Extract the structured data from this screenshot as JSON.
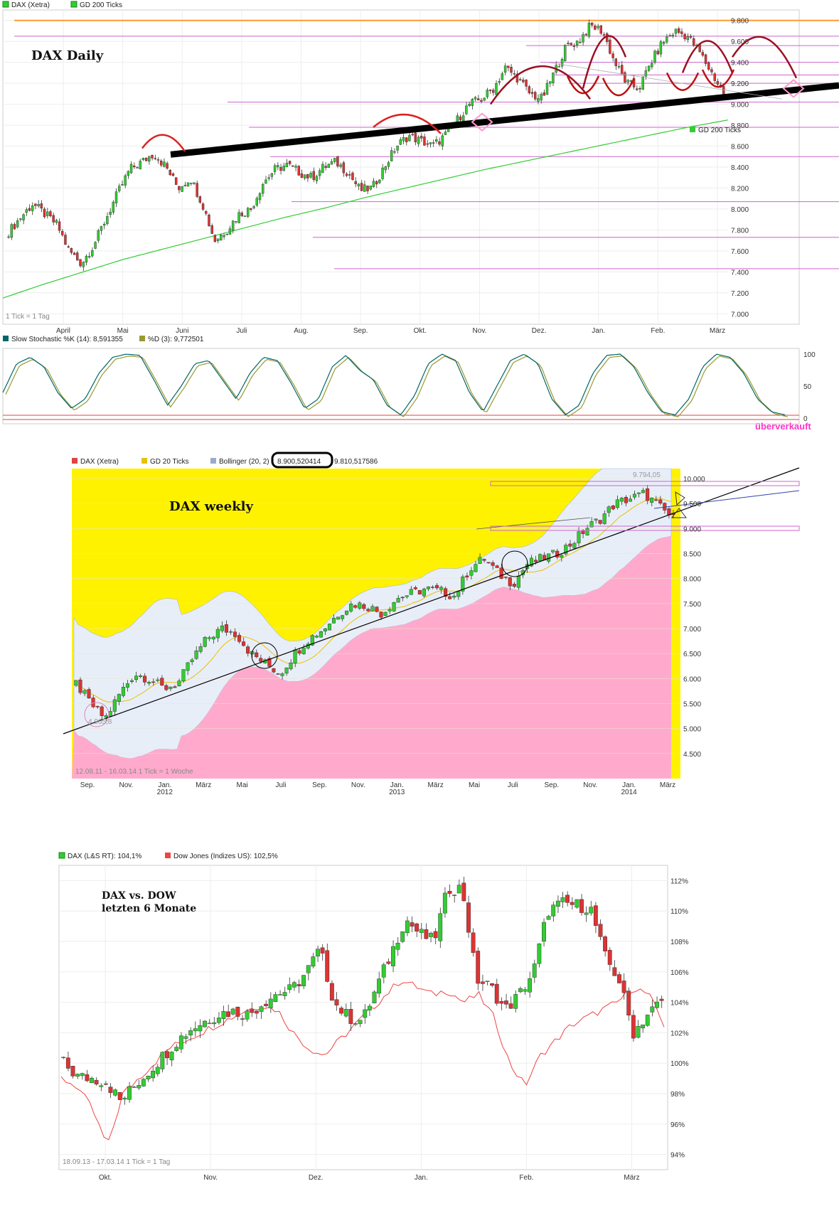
{
  "chart_data": [
    {
      "id": "dax_daily",
      "type": "candlestick",
      "title": "DAX Daily",
      "legend": [
        {
          "label": "DAX (Xetra)",
          "color": "#33cc33"
        },
        {
          "label": "GD 200 Ticks",
          "color": "#33cc33"
        }
      ],
      "footnote": "1 Tick = 1 Tag",
      "ma_label": "GD 200 Ticks",
      "ylim": [
        6900,
        9900
      ],
      "y_ticks": [
        "9.800",
        "9.600",
        "9.400",
        "9.200",
        "9.000",
        "8.800",
        "8.600",
        "8.400",
        "8.200",
        "8.000",
        "7.800",
        "7.600",
        "7.400",
        "7.200",
        "7.000"
      ],
      "x_ticks": [
        "April",
        "Mai",
        "Juni",
        "Juli",
        "Aug.",
        "Sep.",
        "Okt.",
        "Nov.",
        "Dez.",
        "Jan.",
        "Feb.",
        "März"
      ],
      "close_path": [
        7780,
        7920,
        8050,
        7950,
        7850,
        7600,
        7480,
        7650,
        7900,
        8150,
        8380,
        8450,
        8530,
        8400,
        8200,
        8300,
        8050,
        7700,
        7800,
        7950,
        8000,
        8250,
        8380,
        8420,
        8350,
        8300,
        8400,
        8450,
        8350,
        8180,
        8200,
        8400,
        8600,
        8700,
        8650,
        8600,
        8700,
        8850,
        9000,
        9050,
        9150,
        9350,
        9250,
        9100,
        9050,
        9300,
        9550,
        9600,
        9750,
        9700,
        9400,
        9200,
        9150,
        9400,
        9600,
        9700,
        9650,
        9500,
        9300,
        9100
      ],
      "ma_path": [
        7150,
        7280,
        7400,
        7520,
        7620,
        7720,
        7820,
        7920,
        8010,
        8110,
        8200,
        8290,
        8380,
        8460,
        8540,
        8620,
        8700,
        8780,
        8850
      ],
      "support_levels": [
        9800,
        9650,
        9560,
        9400,
        9280,
        9200,
        9020,
        8780,
        8500,
        8070,
        7730,
        7430
      ],
      "trendline": [
        [
          8520,
          9180
        ]
      ],
      "annotation": "überverkauft"
    },
    {
      "id": "slow_stochastic",
      "type": "line",
      "legend": [
        {
          "label": "Slow Stochastic %K (14): 8,591355",
          "color": "#006666"
        },
        {
          "label": "%D (3): 9,772501",
          "color": "#999933"
        }
      ],
      "y_ticks": [
        "100",
        "50",
        "0"
      ],
      "ylim": [
        0,
        100
      ],
      "series": [
        {
          "values": [
            40,
            85,
            95,
            80,
            40,
            15,
            30,
            70,
            95,
            100,
            98,
            60,
            20,
            50,
            85,
            90,
            60,
            30,
            70,
            95,
            90,
            55,
            15,
            30,
            80,
            98,
            75,
            60,
            20,
            5,
            35,
            85,
            100,
            90,
            40,
            10,
            50,
            90,
            100,
            85,
            30,
            5,
            20,
            70,
            98,
            100,
            80,
            40,
            10,
            5,
            30,
            80,
            100,
            95,
            70,
            30,
            10,
            5
          ]
        }
      ]
    },
    {
      "id": "dax_weekly",
      "type": "candlestick",
      "title": "DAX weekly",
      "legend": [
        {
          "label": "DAX (Xetra)",
          "color": "#dd4444"
        },
        {
          "label": "GD 20 Ticks",
          "color": "#e6c200"
        },
        {
          "label": "Bollinger (20, 2)",
          "color": "#99aacc"
        },
        {
          "label": "8.900,520414",
          "color": ""
        },
        {
          "label": "9.810,517586",
          "color": ""
        }
      ],
      "high_label": "9.794,05",
      "low_label": "4.965,8",
      "footnote": "12.08.11 - 16.03.14   1 Tick = 1 Woche",
      "ylim": [
        4000,
        10200
      ],
      "y_ticks": [
        "10.000",
        "9.500",
        "9.000",
        "8.500",
        "8.000",
        "7.500",
        "7.000",
        "6.500",
        "6.000",
        "5.500",
        "5.000",
        "4.500"
      ],
      "x_ticks": [
        "Sep.",
        "Nov.",
        "Jan. 2012",
        "März",
        "Mai",
        "Juli",
        "Sep.",
        "Nov.",
        "Jan. 2013",
        "März",
        "Mai",
        "Juli",
        "Sep.",
        "Nov.",
        "Jan. 2014",
        "März"
      ],
      "close_path": [
        5900,
        5500,
        5200,
        5700,
        6100,
        6000,
        5800,
        5900,
        6400,
        6800,
        7000,
        6900,
        6500,
        6300,
        6100,
        6500,
        6800,
        7000,
        7300,
        7500,
        7450,
        7300,
        7600,
        7700,
        7800,
        7750,
        7650,
        8200,
        8400,
        8100,
        7900,
        8300,
        8400,
        8500,
        8700,
        9000,
        9200,
        9500,
        9600,
        9700,
        9450,
        9200
      ]
    },
    {
      "id": "dax_vs_dow",
      "type": "line",
      "title": "DAX vs. DOW letzten 6 Monate",
      "legend": [
        {
          "label": "DAX (L&S RT): 104,1%",
          "color": "#33cc33"
        },
        {
          "label": "Dow Jones (Indizes US): 102,5%",
          "color": "#ee4444"
        }
      ],
      "footnote": "18.09.13 - 17.03.14   1 Tick = 1 Tag",
      "ylim": [
        93,
        113
      ],
      "y_ticks": [
        "112%",
        "110%",
        "108%",
        "106%",
        "104%",
        "102%",
        "100%",
        "98%",
        "96%",
        "94%"
      ],
      "x_ticks": [
        "Okt.",
        "Nov.",
        "Dez.",
        "Jan.",
        "Feb.",
        "März"
      ],
      "series": [
        {
          "name": "DAX (L&S RT): 104,1%",
          "values": [
            100,
            99.1,
            99,
            98.8,
            97.5,
            98.5,
            99.5,
            100.5,
            101.5,
            102.3,
            102.8,
            103.3,
            103.4,
            103.2,
            104,
            104.6,
            104.8,
            105.9,
            107.5,
            104,
            103,
            102.8,
            105,
            107.2,
            109.5,
            108.5,
            108,
            111.5,
            111.5,
            105.5,
            105,
            103.5,
            104.5,
            106,
            110,
            110.5,
            110.4,
            110.2,
            107,
            105.5,
            102,
            103.2,
            104.1
          ]
        },
        {
          "name": "Dow Jones (Indizes US): 102,5%",
          "values": [
            99,
            98.5,
            97,
            94.5,
            98,
            99,
            100,
            101,
            101.5,
            102,
            102.5,
            103,
            103.5,
            103.8,
            103.5,
            102,
            101,
            100.5,
            101.5,
            102.5,
            103.5,
            104.5,
            105.5,
            105,
            104.5,
            104.8,
            104,
            104.5,
            103,
            100,
            98.5,
            100.5,
            101.5,
            102.5,
            103,
            103.5,
            104,
            105,
            104.5,
            102.5
          ]
        }
      ]
    }
  ]
}
